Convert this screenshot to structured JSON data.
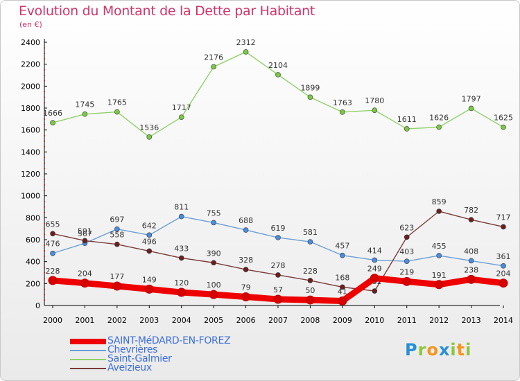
{
  "title": "Evolution du Montant de la Dette par Habitant",
  "subtitle": "(en €)",
  "logo": {
    "text": "Proxiti",
    "letters": [
      {
        "ch": "P",
        "color": "#2a8fd6"
      },
      {
        "ch": "r",
        "color": "#8cc63f"
      },
      {
        "ch": "o",
        "color": "#f7941d"
      },
      {
        "ch": "x",
        "color": "#2a8fd6"
      },
      {
        "ch": "i",
        "color": "#8cc63f"
      },
      {
        "ch": "t",
        "color": "#f7941d"
      },
      {
        "ch": "i",
        "color": "#8cc63f"
      }
    ]
  },
  "chart_data": {
    "type": "line",
    "x": [
      "2000",
      "2001",
      "2002",
      "2003",
      "2004",
      "2005",
      "2006",
      "2007",
      "2008",
      "2009",
      "2010",
      "2011",
      "2012",
      "2013",
      "2014"
    ],
    "ylim": [
      0,
      2400
    ],
    "yticks": [
      0,
      200,
      400,
      600,
      800,
      1000,
      1200,
      1400,
      1600,
      1800,
      2000,
      2200,
      2400
    ],
    "grid": false,
    "legend_position": "bottom-left",
    "series": [
      {
        "name": "Saint-Galmier",
        "color": "#8fd16a",
        "marker": "#7ac943",
        "values": [
          1666,
          1745,
          1765,
          1536,
          1717,
          2176,
          2312,
          2104,
          1899,
          1763,
          1780,
          1611,
          1626,
          1797,
          1625
        ]
      },
      {
        "name": "Chevrières",
        "color": "#6b9fd6",
        "marker": "#4a8de0",
        "values": [
          476,
          567,
          697,
          642,
          811,
          755,
          688,
          619,
          581,
          457,
          414,
          403,
          455,
          408,
          361
        ]
      },
      {
        "name": "Aveizieux",
        "color": "#7a3b3b",
        "marker": "#6b1f1f",
        "values": [
          655,
          591,
          558,
          496,
          433,
          390,
          328,
          278,
          228,
          168,
          132,
          623,
          859,
          782,
          717
        ]
      },
      {
        "name": "SAINT-MéDARD-EN-FOREZ",
        "color": "#ee0000",
        "marker": "#d60000",
        "values": [
          228,
          204,
          177,
          149,
          120,
          100,
          79,
          57,
          50,
          41,
          249,
          219,
          191,
          238,
          204
        ]
      }
    ],
    "data_labels": {
      "Saint-Galmier": [
        "1666",
        "1745",
        "1765",
        "1536",
        "1717",
        "2176",
        "2312",
        "2104",
        "1899",
        "1763",
        "1780",
        "1611",
        "1626",
        "1797",
        "1625"
      ],
      "Chevrières": [
        "476",
        "567",
        "697",
        "642",
        "811",
        "755",
        "688",
        "619",
        "581",
        "457",
        "414",
        "403",
        "455",
        "408",
        "361"
      ],
      "Aveizieux": [
        "655",
        "591",
        "558",
        "496",
        "433",
        "390",
        "328",
        "278",
        "228",
        "168",
        "132",
        "623",
        "859",
        "782",
        "717"
      ],
      "SAINT-MéDARD-EN-FOREZ": [
        "228",
        "204",
        "177",
        "149",
        "120",
        "100",
        "79",
        "57",
        "50",
        "41",
        "249",
        "219",
        "191",
        "238",
        "204"
      ]
    },
    "legend_order": [
      "SAINT-MéDARD-EN-FOREZ",
      "Chevrières",
      "Saint-Galmier",
      "Aveizieux"
    ]
  }
}
